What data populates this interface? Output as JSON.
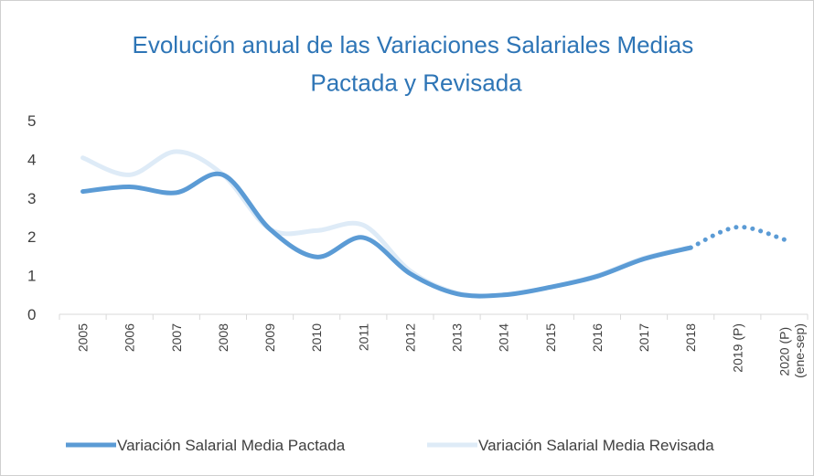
{
  "chart_data": {
    "type": "line",
    "title": "Evolución anual de las Variaciones Salariales Medias\nPactada y Revisada",
    "categories": [
      "2005",
      "2006",
      "2007",
      "2008",
      "2009",
      "2010",
      "2011",
      "2012",
      "2013",
      "2014",
      "2015",
      "2016",
      "2017",
      "2018",
      "2019 (P)",
      "2020 (P)\n(ene-sep)"
    ],
    "series": [
      {
        "name": "Variación Salarial Media Pactada",
        "color": "#5b9bd5",
        "dotted_from": 13,
        "values": [
          3.17,
          3.29,
          3.14,
          3.6,
          2.2,
          1.48,
          1.98,
          1.05,
          0.53,
          0.5,
          0.7,
          0.98,
          1.43,
          1.72,
          2.25,
          1.93
        ]
      },
      {
        "name": "Variación Salarial Media Revisada",
        "color": "#deebf7",
        "values": [
          4.04,
          3.6,
          4.2,
          3.6,
          2.2,
          2.16,
          2.3,
          1.12,
          0.55,
          0.5,
          0.7,
          1.0,
          1.45,
          1.72,
          null,
          null
        ]
      }
    ],
    "ylim": [
      0,
      5
    ],
    "yticks": [
      0,
      1,
      2,
      3,
      4,
      5
    ],
    "legend": "bottom"
  }
}
